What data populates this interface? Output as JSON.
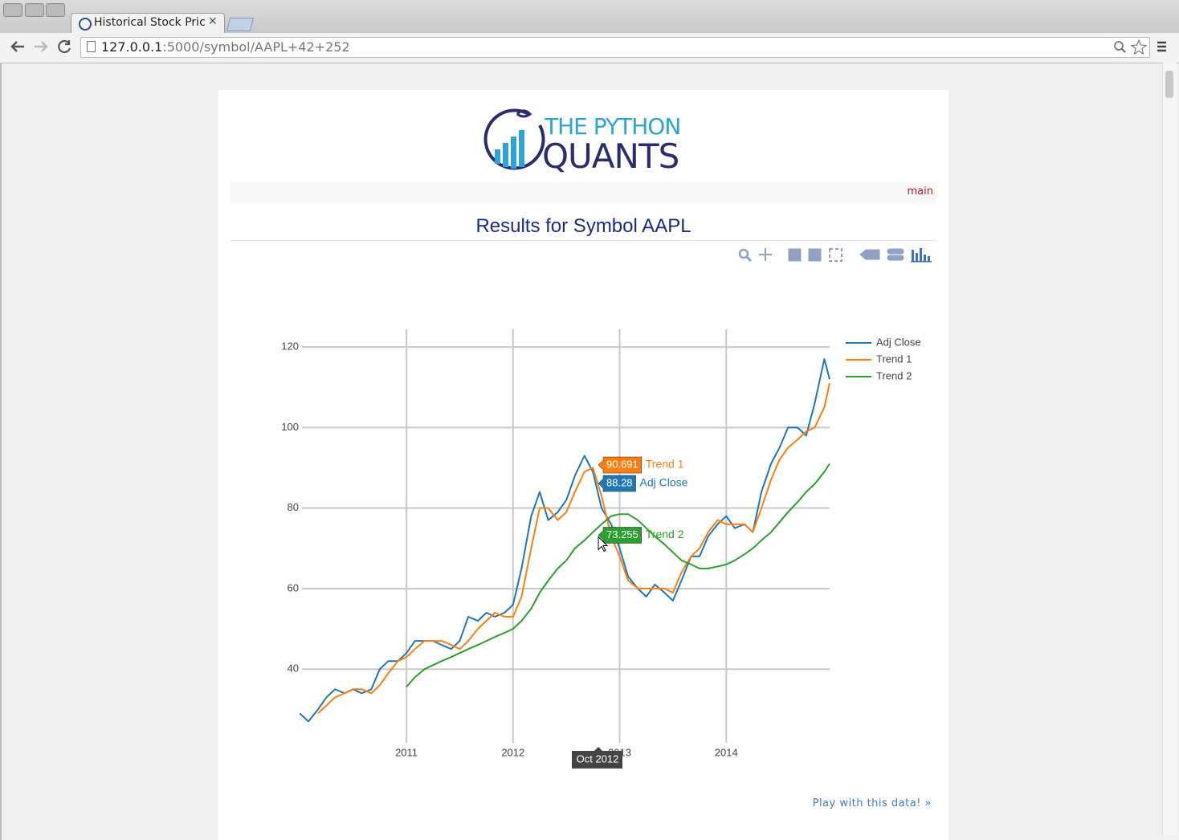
{
  "browser": {
    "tab_title": "Historical Stock Pric",
    "url_host": "127.0.0.1",
    "url_rest": ":5000/symbol/AAPL+42+252"
  },
  "page": {
    "logo_top": "THE PYTHON",
    "logo_bottom": "QUANTS",
    "nav_link": "main",
    "heading": "Results for Symbol AAPL",
    "footer_link": "Play with this data! »"
  },
  "chart_data": {
    "type": "line",
    "x": [
      2010.0,
      2010.08,
      2010.17,
      2010.25,
      2010.33,
      2010.42,
      2010.5,
      2010.58,
      2010.67,
      2010.75,
      2010.83,
      2010.92,
      2011.0,
      2011.08,
      2011.17,
      2011.25,
      2011.33,
      2011.42,
      2011.5,
      2011.58,
      2011.67,
      2011.75,
      2011.83,
      2011.92,
      2012.0,
      2012.08,
      2012.17,
      2012.25,
      2012.33,
      2012.42,
      2012.5,
      2012.58,
      2012.67,
      2012.75,
      2012.83,
      2012.92,
      2013.0,
      2013.08,
      2013.17,
      2013.25,
      2013.33,
      2013.42,
      2013.5,
      2013.58,
      2013.67,
      2013.75,
      2013.83,
      2013.92,
      2014.0,
      2014.08,
      2014.17,
      2014.25,
      2014.33,
      2014.42,
      2014.5,
      2014.58,
      2014.67,
      2014.75,
      2014.83,
      2014.92,
      2014.97
    ],
    "series": [
      {
        "name": "Adj Close",
        "color": "#1f77b4",
        "values": [
          29,
          27,
          30,
          33,
          35,
          34,
          35,
          34,
          35,
          40,
          42,
          42,
          44,
          47,
          47,
          47,
          46,
          45,
          47,
          53,
          52,
          54,
          53,
          54,
          56,
          65,
          78,
          84,
          77,
          79,
          82,
          88,
          93,
          89,
          80,
          76,
          70,
          63,
          60,
          58,
          61,
          59,
          57,
          62,
          68,
          68,
          73,
          76,
          78,
          75,
          76,
          74,
          84,
          91,
          95,
          100,
          100,
          98,
          106,
          117,
          112
        ]
      },
      {
        "name": "Trend 1",
        "color": "#ff7f0e",
        "values": [
          null,
          null,
          29,
          31,
          33,
          34,
          35,
          35,
          34,
          36,
          39,
          42,
          43,
          45,
          47,
          47,
          47,
          46,
          45,
          47,
          50,
          52,
          54,
          53,
          53,
          58,
          70,
          80,
          80,
          77,
          79,
          84,
          89,
          90,
          83,
          73,
          68,
          62,
          60,
          60,
          60,
          60,
          59,
          64,
          68,
          70,
          74,
          77,
          76,
          76,
          76,
          74,
          80,
          87,
          92,
          95,
          97,
          99,
          100,
          105,
          111
        ]
      },
      {
        "name": "Trend 2",
        "color": "#2ca02c",
        "values": [
          null,
          null,
          null,
          null,
          null,
          null,
          null,
          null,
          null,
          null,
          null,
          null,
          35.6,
          38,
          40,
          41,
          42,
          43,
          44,
          45,
          46,
          47,
          48,
          49,
          50,
          52,
          55,
          59,
          62,
          65,
          67,
          70,
          72,
          74,
          76,
          78,
          78.5,
          78.5,
          77,
          75,
          73,
          71,
          69,
          67,
          66,
          65,
          65,
          65.5,
          66,
          67,
          68.5,
          70,
          72,
          74,
          76.5,
          79,
          81.5,
          84,
          86,
          89,
          91
        ]
      }
    ],
    "xlim": [
      2010.02,
      2014.97
    ],
    "xticks": [
      2011,
      2012,
      2013,
      2014
    ],
    "ylim": [
      21.7,
      124.4
    ],
    "yticks": [
      40,
      60,
      80,
      100,
      120
    ],
    "grid": true,
    "hover": {
      "x_label": "Oct 2012",
      "items": [
        {
          "name": "Trend 1",
          "value": 90.691
        },
        {
          "name": "Adj Close",
          "value": 88.28
        },
        {
          "name": "Trend 2",
          "value": 73.255
        }
      ]
    }
  }
}
